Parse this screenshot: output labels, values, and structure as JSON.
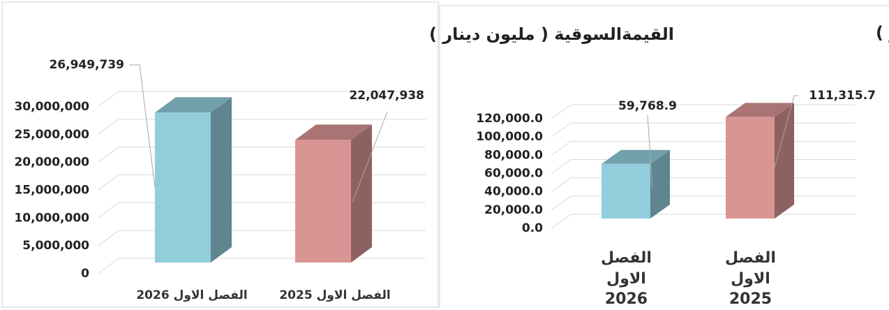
{
  "chart_data": [
    {
      "type": "bar3d",
      "title": "القيمةالسوقية ( مليون دينار )",
      "categories": [
        "الفصل الاول 2026",
        "الفصل الاول 2025"
      ],
      "values": [
        26949739,
        22047938
      ],
      "value_labels": [
        "26,949,739",
        "22,047,938"
      ],
      "colors": [
        "#92cddc",
        "#d99594"
      ],
      "ylim": [
        0,
        30000000
      ],
      "yticks": [
        0,
        {
          "value": 5000000,
          "label": "5,000,000"
        },
        {
          "value": 10000000,
          "label": "10,000,000"
        },
        {
          "value": 15000000,
          "label": "15,000,000"
        },
        {
          "value": 20000000,
          "label": "20,000,000"
        },
        {
          "value": 25000000,
          "label": "25,000,000"
        },
        {
          "value": 30000000,
          "label": "30,000,000"
        }
      ],
      "grid": true
    },
    {
      "type": "bar3d",
      "title": "قيمة التداول (مليون دينار )",
      "categories": [
        "الفصل الاول 2026",
        "الفصل الاول 2025"
      ],
      "values": [
        59768.9,
        111315.7
      ],
      "value_labels": [
        "59,768.9",
        "111,315.7"
      ],
      "colors": [
        "#92cddc",
        "#d99594"
      ],
      "ylim": [
        0,
        120000
      ],
      "yticks": [
        {
          "value": 0,
          "label": "0.0"
        },
        {
          "value": 20000,
          "label": "20,000.0"
        },
        {
          "value": 40000,
          "label": "40,000.0"
        },
        {
          "value": 60000,
          "label": "60,000.0"
        },
        {
          "value": 80000,
          "label": "80,000.0"
        },
        {
          "value": 100000,
          "label": "100,000.0"
        },
        {
          "value": 120000,
          "label": "120,000.0"
        }
      ],
      "grid": true
    }
  ]
}
